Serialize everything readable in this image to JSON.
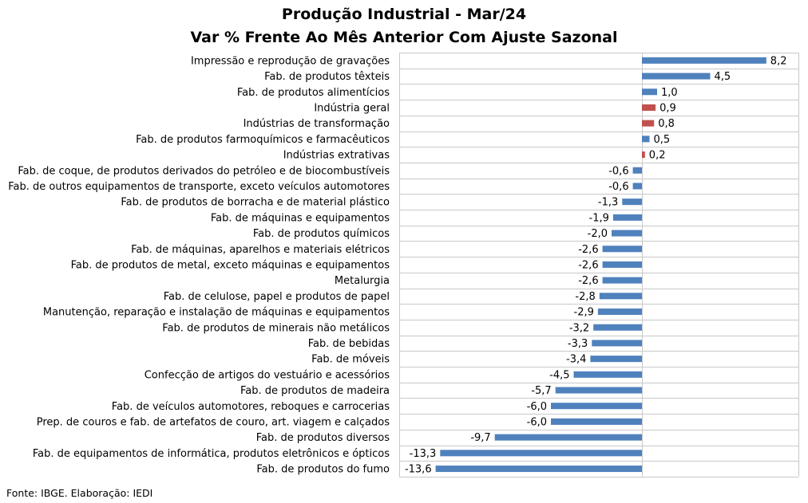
{
  "chart_data": {
    "type": "bar",
    "orientation": "horizontal",
    "title": "Produção Industrial - Mar/24",
    "subtitle": "Var % Frente Ao Mês Anterior Com Ajuste Sazonal",
    "categories": [
      "Impressão e reprodução de gravações",
      "Fab. de produtos têxteis",
      "Fab. de produtos alimentícios",
      "Indústria geral",
      "Indústrias de transformação",
      "Fab. de produtos farmoquímicos e farmacêuticos",
      "Indústrias extrativas",
      "Fab. de coque, de produtos derivados do petróleo e de biocombustíveis",
      "Fab. de outros equipamentos de transporte, exceto veículos automotores",
      "Fab. de produtos de borracha e de material plástico",
      "Fab. de máquinas e equipamentos",
      "Fab. de produtos químicos",
      "Fab. de máquinas, aparelhos e materiais elétricos",
      "Fab. de produtos de metal, exceto máquinas e equipamentos",
      "Metalurgia",
      "Fab. de celulose, papel e produtos de papel",
      "Manutenção, reparação e instalação de máquinas e equipamentos",
      "Fab. de produtos de minerais não metálicos",
      "Fab. de bebidas",
      "Fab. de móveis",
      "Confecção de artigos do vestuário e acessórios",
      "Fab. de produtos de madeira",
      "Fab. de veículos automotores, reboques e carrocerias",
      "Prep. de couros e fab. de artefatos de couro, art. viagem e calçados",
      "Fab. de produtos diversos",
      "Fab. de equipamentos de informática, produtos eletrônicos e ópticos",
      "Fab. de produtos do fumo"
    ],
    "values": [
      8.2,
      4.5,
      1.0,
      0.9,
      0.8,
      0.5,
      0.2,
      -0.6,
      -0.6,
      -1.3,
      -1.9,
      -2.0,
      -2.6,
      -2.6,
      -2.6,
      -2.8,
      -2.9,
      -3.2,
      -3.3,
      -3.4,
      -4.5,
      -5.7,
      -6.0,
      -6.0,
      -9.7,
      -13.3,
      -13.6
    ],
    "labels": [
      "8,2",
      "4,5",
      "1,0",
      "0,9",
      "0,8",
      "0,5",
      "0,2",
      "-0,6",
      "-0,6",
      "-1,3",
      "-1,9",
      "-2,0",
      "-2,6",
      "-2,6",
      "-2,6",
      "-2,8",
      "-2,9",
      "-3,2",
      "-3,3",
      "-3,4",
      "-4,5",
      "-5,7",
      "-6,0",
      "-6,0",
      "-9,7",
      "-13,3",
      "-13,6"
    ],
    "highlight": [
      "Indústria geral",
      "Indústrias de transformação",
      "Indústrias extrativas"
    ],
    "colors": {
      "bar": "#4f81bd",
      "highlight": "#c0504d",
      "grid": "#c8c8c8"
    },
    "grid": true,
    "legend": "none"
  },
  "source": "Fonte: IBGE. Elaboração: IEDI"
}
